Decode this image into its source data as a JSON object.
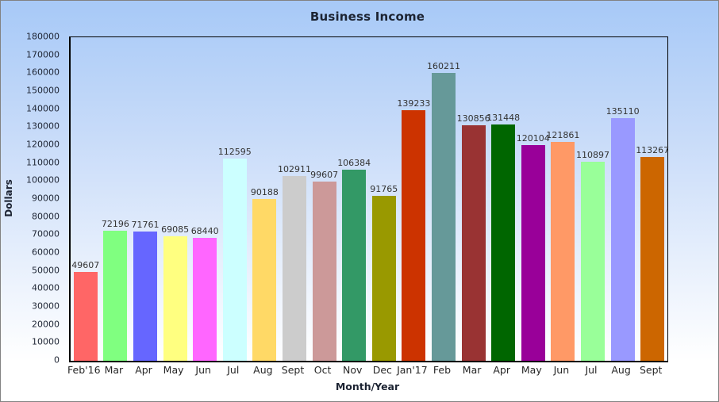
{
  "chart_title": "Business Income",
  "axis_titles": {
    "x": "Month/Year",
    "y": "Dollars"
  },
  "chart_data": {
    "type": "bar",
    "title": "Business Income",
    "xlabel": "Month/Year",
    "ylabel": "Dollars",
    "ylim": [
      0,
      180000
    ],
    "ytick_step": 10000,
    "grid": false,
    "legend": false,
    "categories": [
      "Feb'16",
      "Mar",
      "Apr",
      "May",
      "Jun",
      "Jul",
      "Aug",
      "Sept",
      "Oct",
      "Nov",
      "Dec",
      "Jan'17",
      "Feb",
      "Mar",
      "Apr",
      "May",
      "Jun",
      "Jul",
      "Aug",
      "Sept"
    ],
    "values": [
      49607,
      72196,
      71761,
      69085,
      68440,
      112595,
      90188,
      102911,
      99607,
      106384,
      91765,
      139233,
      160211,
      130856,
      131448,
      120104,
      121861,
      110897,
      135110,
      113267
    ],
    "bar_colors": [
      "#FF6666",
      "#80FF80",
      "#6666FF",
      "#FFFF80",
      "#FF66FF",
      "#CCFFFF",
      "#FFD966",
      "#CCCCCC",
      "#CC9999",
      "#339966",
      "#999900",
      "#CC3300",
      "#669999",
      "#993333",
      "#006600",
      "#990099",
      "#FF9966",
      "#99FF99",
      "#9999FF",
      "#CC6600"
    ],
    "value_labels_shown": true
  },
  "colors": {
    "background_top": "#a7c9f7",
    "background_bottom": "#ffffff",
    "frame_border": "#828282",
    "axis_line": "#000000",
    "tick_text": "#1d2433",
    "value_label_text": "#333333"
  }
}
